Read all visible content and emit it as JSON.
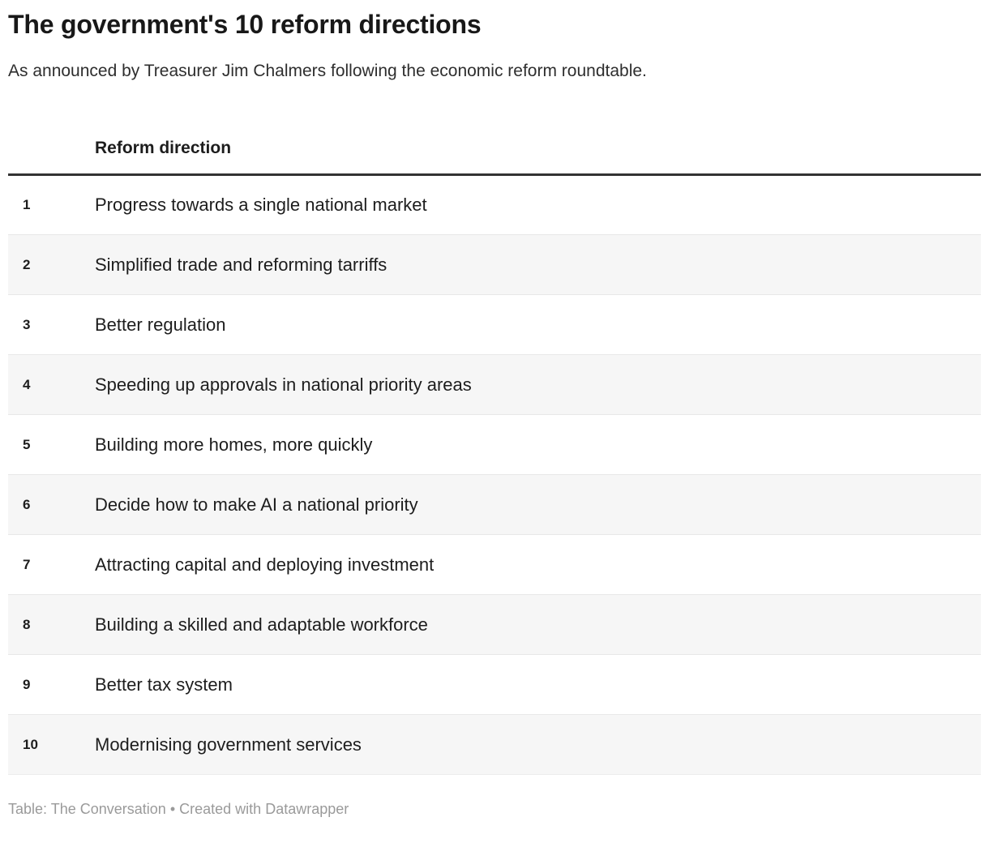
{
  "header": {
    "title": "The government's 10 reform directions",
    "subtitle": "As announced by Treasurer Jim Chalmers following the economic reform roundtable."
  },
  "chart_data": {
    "type": "table",
    "title": "The government's 10 reform directions",
    "subtitle": "As announced by Treasurer Jim Chalmers following the economic reform roundtable.",
    "columns": [
      "",
      "Reform direction"
    ],
    "rows": [
      [
        "1",
        "Progress towards a single national market"
      ],
      [
        "2",
        "Simplified trade and reforming tarriffs"
      ],
      [
        "3",
        "Better regulation"
      ],
      [
        "4",
        "Speeding up approvals in national priority areas"
      ],
      [
        "5",
        "Building more homes, more quickly"
      ],
      [
        "6",
        "Decide how to make AI a national priority"
      ],
      [
        "7",
        "Attracting capital and deploying investment"
      ],
      [
        "8",
        "Building a skilled and adaptable workforce"
      ],
      [
        "9",
        "Better tax system"
      ],
      [
        "10",
        "Modernising government services"
      ]
    ],
    "layout_hints": {
      "striped_rows": true,
      "stripe_on": "even",
      "header_rule": true
    }
  },
  "table": {
    "direction_header": "Reform direction",
    "rows": [
      {
        "number": "1",
        "direction": "Progress towards a single national market"
      },
      {
        "number": "2",
        "direction": "Simplified trade and reforming tarriffs"
      },
      {
        "number": "3",
        "direction": "Better regulation"
      },
      {
        "number": "4",
        "direction": "Speeding up approvals in national priority areas"
      },
      {
        "number": "5",
        "direction": "Building more homes, more quickly"
      },
      {
        "number": "6",
        "direction": "Decide how to make AI a national priority"
      },
      {
        "number": "7",
        "direction": "Attracting capital and deploying investment"
      },
      {
        "number": "8",
        "direction": "Building a skilled and adaptable workforce"
      },
      {
        "number": "9",
        "direction": "Better tax system"
      },
      {
        "number": "10",
        "direction": "Modernising government services"
      }
    ]
  },
  "footer": {
    "source_label": "Table: The Conversation",
    "separator": "•",
    "credit": "Created with Datawrapper"
  },
  "colors": {
    "title_text": "#181818",
    "body_text": "#1d1d1d",
    "header_rule": "#333333",
    "row_stripe": "#f6f6f6",
    "row_border": "#e8e8e8",
    "footer_text": "#9a9a9a",
    "background": "#ffffff"
  }
}
